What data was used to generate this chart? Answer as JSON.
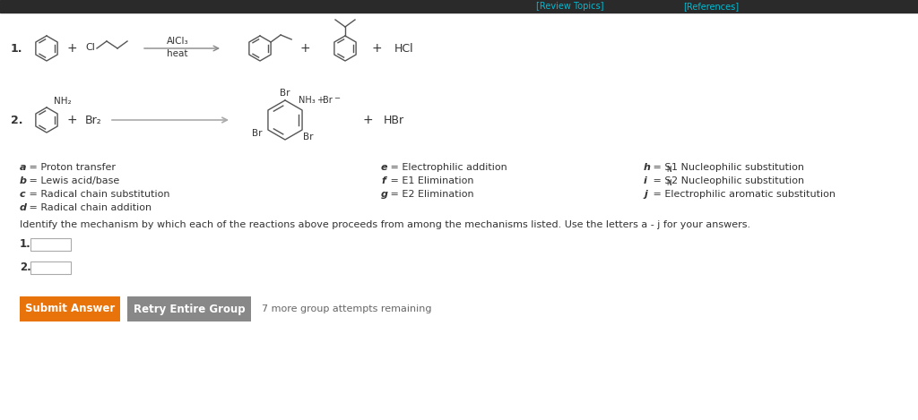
{
  "bg_color": "#ffffff",
  "top_bar_color": "#2a2a2a",
  "header_link_color": "#00bcd4",
  "alcl3_text": "AlCl₃",
  "heat_text": "heat",
  "hcl_text": "HCl",
  "hbr_text": "HBr",
  "br2_text": "Br₂",
  "nh2_text": "NH₂",
  "nh3_text": "NH₃",
  "plus_color": "#444444",
  "arrow_color": "#777777",
  "mechanism_col1": [
    [
      "a",
      "Proton transfer"
    ],
    [
      "b",
      "Lewis acid/base"
    ],
    [
      "c",
      "Radical chain substitution"
    ],
    [
      "d",
      "Radical chain addition"
    ]
  ],
  "mechanism_col2": [
    [
      "e",
      "Electrophilic addition"
    ],
    [
      "f",
      "E1 Elimination"
    ],
    [
      "g",
      "E2 Elimination"
    ]
  ],
  "identify_text": "Identify the mechanism by which each of the reactions above proceeds from among the mechanisms listed. Use the letters a - j for your answers.",
  "submit_btn_text": "Submit Answer",
  "submit_btn_color": "#e8730a",
  "retry_btn_text": "Retry Entire Group",
  "retry_btn_color": "#888888",
  "attempts_text": "7 more group attempts remaining",
  "input_box_color": "#ffffff",
  "input_box_border": "#aaaaaa",
  "text_color": "#333333",
  "gray_color": "#666666",
  "mol_color": "#555555"
}
